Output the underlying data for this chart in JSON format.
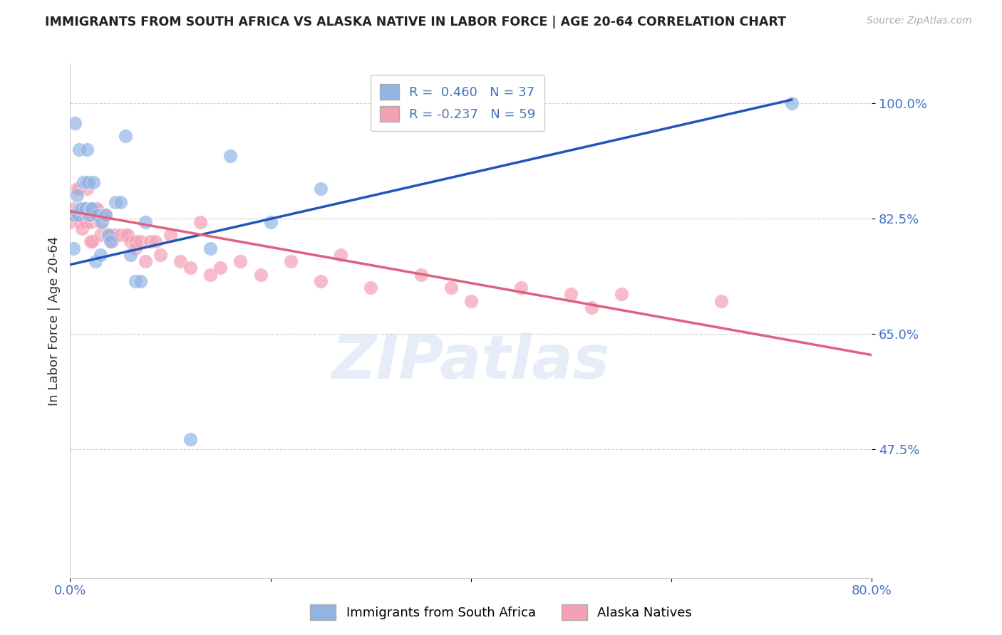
{
  "title": "IMMIGRANTS FROM SOUTH AFRICA VS ALASKA NATIVE IN LABOR FORCE | AGE 20-64 CORRELATION CHART",
  "source": "Source: ZipAtlas.com",
  "ylabel": "In Labor Force | Age 20-64",
  "xlim": [
    0.0,
    0.8
  ],
  "ylim": [
    0.28,
    1.06
  ],
  "yticks": [
    0.475,
    0.65,
    0.825,
    1.0
  ],
  "ytick_labels": [
    "47.5%",
    "65.0%",
    "82.5%",
    "100.0%"
  ],
  "xticks": [
    0.0,
    0.2,
    0.4,
    0.6,
    0.8
  ],
  "xtick_labels": [
    "0.0%",
    "",
    "",
    "",
    "80.0%"
  ],
  "blue_R": 0.46,
  "blue_N": 37,
  "pink_R": -0.237,
  "pink_N": 59,
  "blue_color": "#92b4e3",
  "pink_color": "#f4a0b5",
  "blue_line_color": "#2255bb",
  "pink_line_color": "#e06080",
  "watermark": "ZIPatlas",
  "blue_points_x": [
    0.003,
    0.005,
    0.007,
    0.008,
    0.009,
    0.01,
    0.012,
    0.013,
    0.015,
    0.016,
    0.017,
    0.018,
    0.019,
    0.02,
    0.022,
    0.023,
    0.025,
    0.027,
    0.03,
    0.032,
    0.035,
    0.038,
    0.04,
    0.045,
    0.05,
    0.055,
    0.06,
    0.065,
    0.07,
    0.075,
    0.12,
    0.14,
    0.16,
    0.2,
    0.25,
    0.72,
    0.003
  ],
  "blue_points_y": [
    0.83,
    0.97,
    0.86,
    0.83,
    0.93,
    0.84,
    0.84,
    0.88,
    0.84,
    0.88,
    0.93,
    0.88,
    0.83,
    0.84,
    0.84,
    0.88,
    0.76,
    0.83,
    0.77,
    0.82,
    0.83,
    0.8,
    0.79,
    0.85,
    0.85,
    0.95,
    0.77,
    0.73,
    0.73,
    0.82,
    0.49,
    0.78,
    0.92,
    0.82,
    0.87,
    1.0,
    0.78
  ],
  "pink_points_x": [
    0.0,
    0.003,
    0.005,
    0.007,
    0.008,
    0.01,
    0.01,
    0.012,
    0.013,
    0.015,
    0.017,
    0.017,
    0.018,
    0.02,
    0.02,
    0.022,
    0.022,
    0.025,
    0.025,
    0.027,
    0.03,
    0.03,
    0.032,
    0.035,
    0.038,
    0.04,
    0.042,
    0.045,
    0.05,
    0.055,
    0.057,
    0.06,
    0.065,
    0.065,
    0.07,
    0.075,
    0.08,
    0.085,
    0.09,
    0.1,
    0.11,
    0.12,
    0.13,
    0.14,
    0.15,
    0.17,
    0.19,
    0.22,
    0.25,
    0.27,
    0.3,
    0.35,
    0.38,
    0.4,
    0.45,
    0.5,
    0.52,
    0.55,
    0.65
  ],
  "pink_points_y": [
    0.82,
    0.84,
    0.83,
    0.87,
    0.87,
    0.83,
    0.82,
    0.81,
    0.84,
    0.82,
    0.87,
    0.84,
    0.83,
    0.82,
    0.79,
    0.79,
    0.83,
    0.83,
    0.84,
    0.84,
    0.82,
    0.8,
    0.83,
    0.83,
    0.8,
    0.8,
    0.79,
    0.8,
    0.8,
    0.8,
    0.8,
    0.79,
    0.79,
    0.78,
    0.79,
    0.76,
    0.79,
    0.79,
    0.77,
    0.8,
    0.76,
    0.75,
    0.82,
    0.74,
    0.75,
    0.76,
    0.74,
    0.76,
    0.73,
    0.77,
    0.72,
    0.74,
    0.72,
    0.7,
    0.72,
    0.71,
    0.69,
    0.71,
    0.7
  ],
  "blue_line_x": [
    0.0,
    0.72
  ],
  "blue_line_y": [
    0.755,
    1.005
  ],
  "pink_line_x": [
    0.0,
    0.8
  ],
  "pink_line_y": [
    0.836,
    0.618
  ]
}
